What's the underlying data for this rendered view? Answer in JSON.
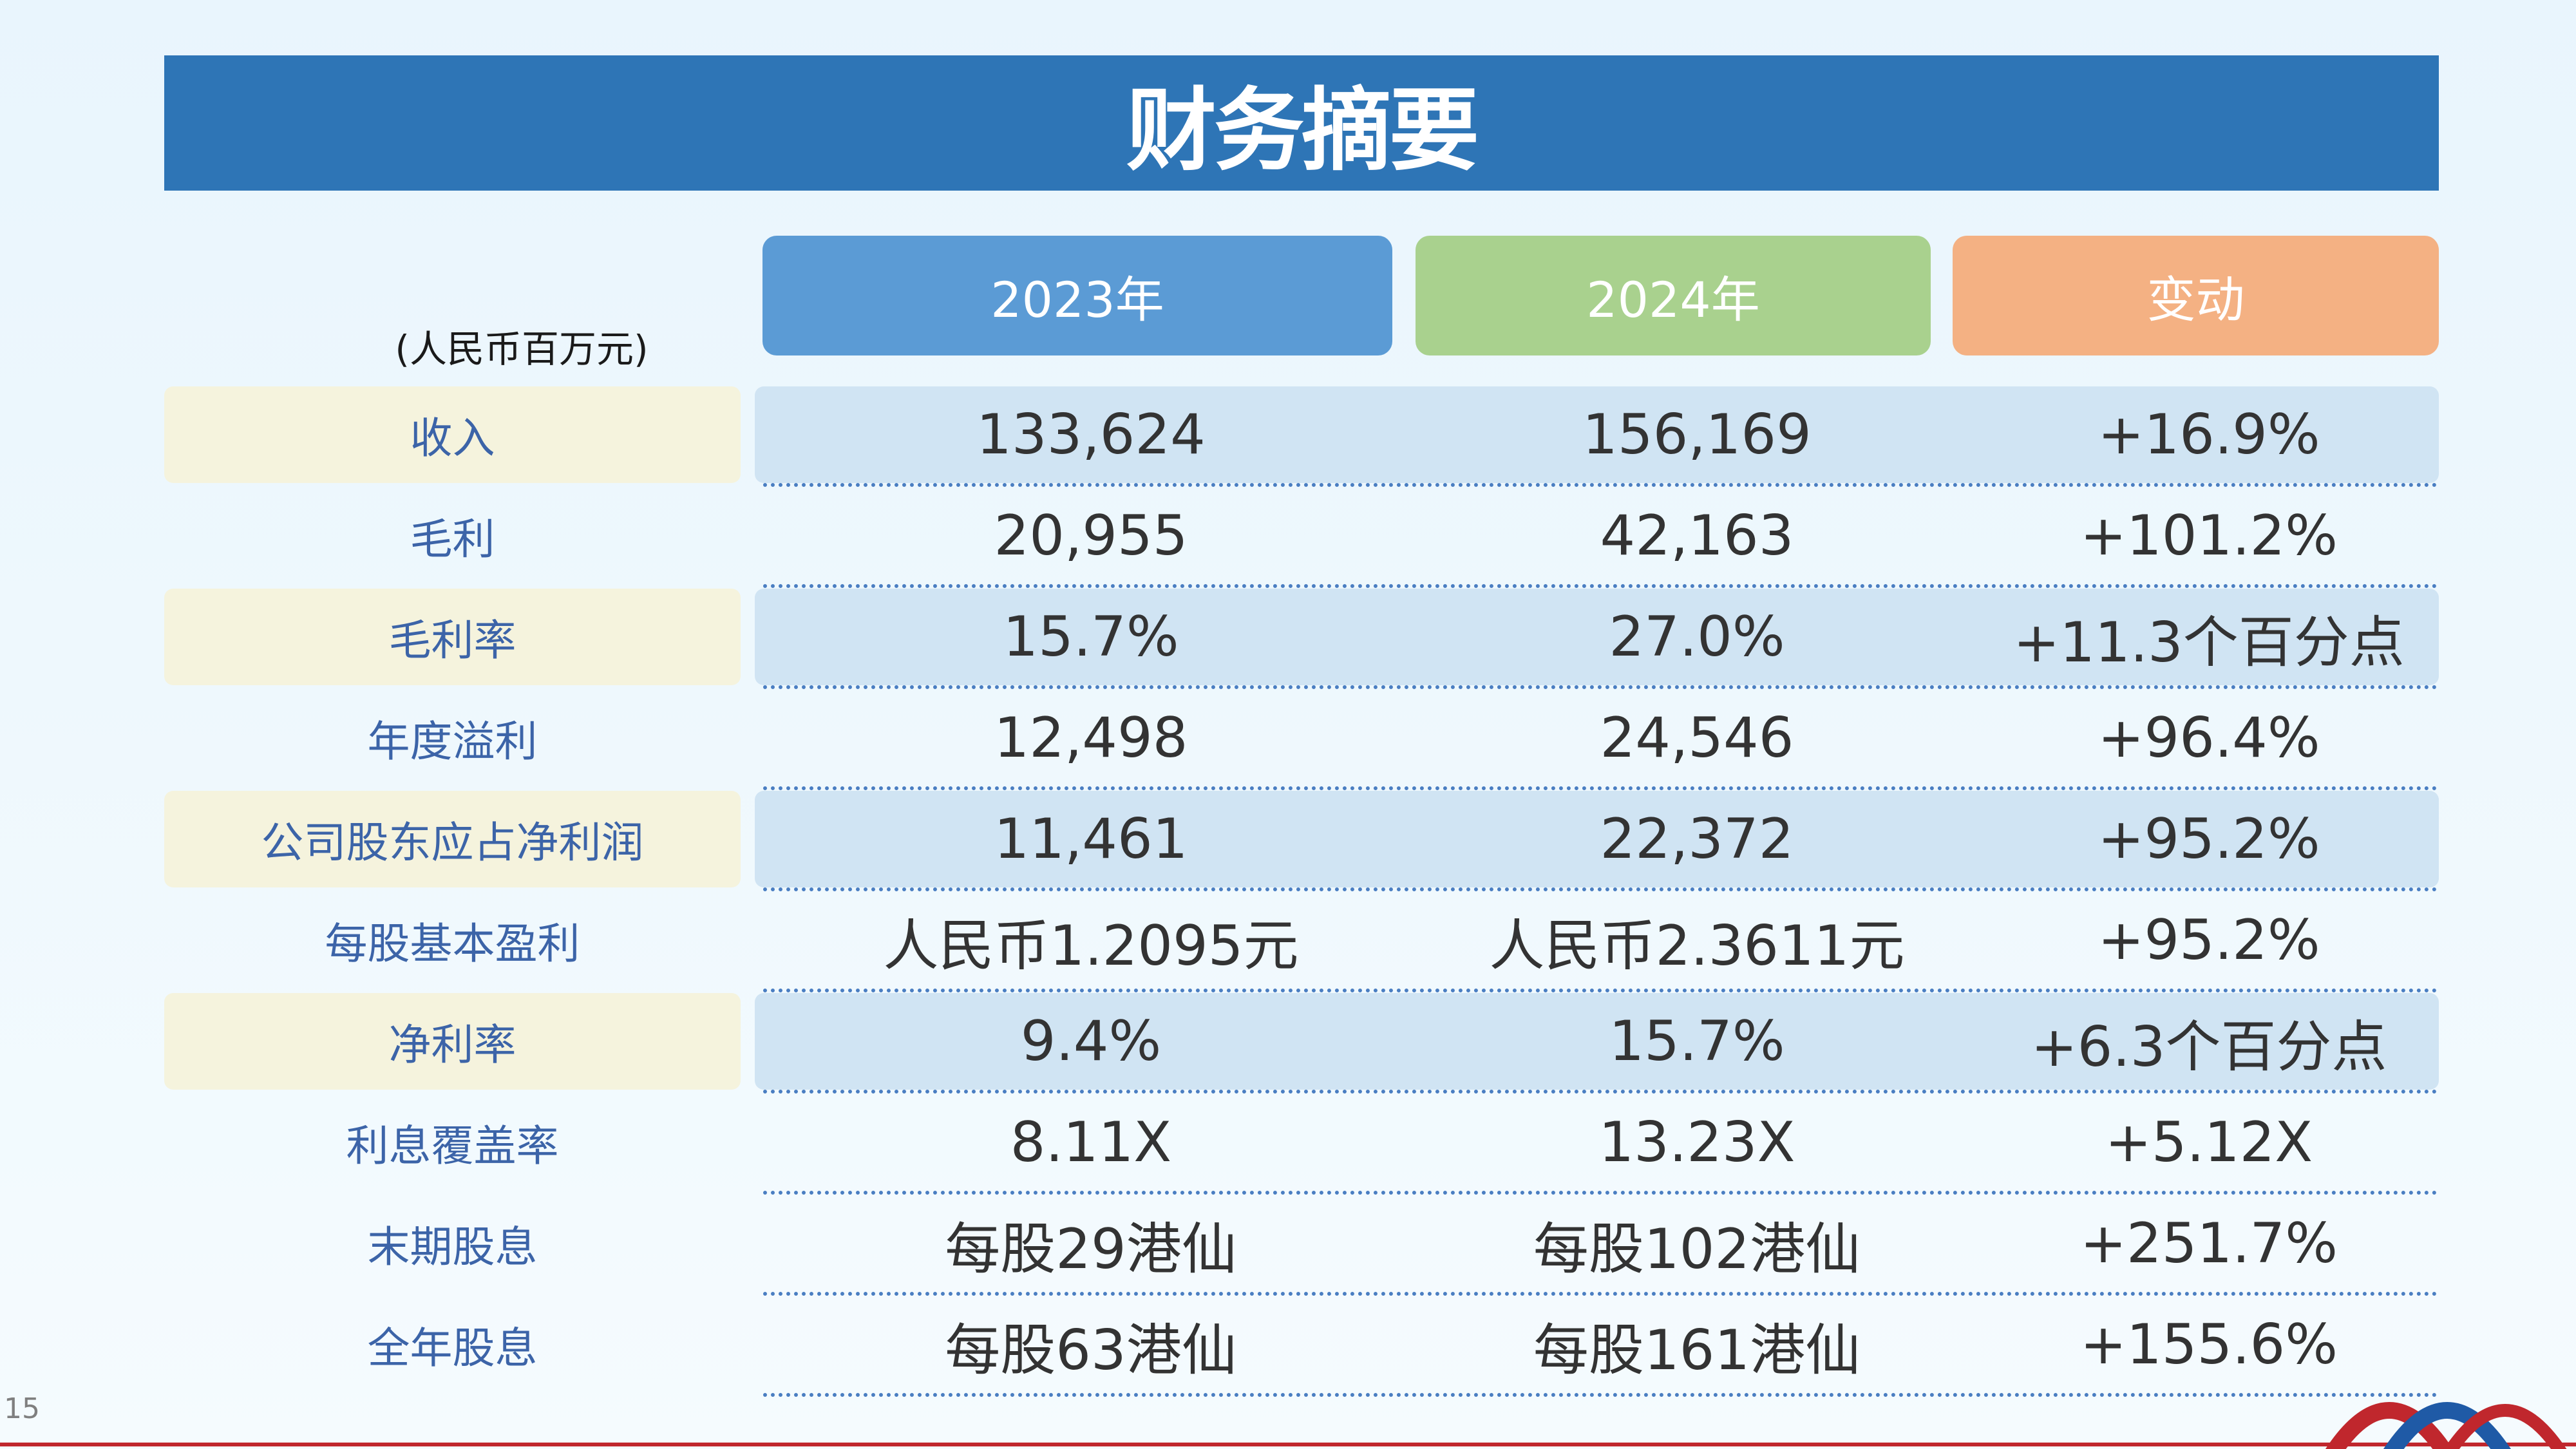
{
  "title": "财务摘要",
  "unit_label": "(人民币百万元)",
  "columns": [
    "2023年",
    "2024年",
    "变动"
  ],
  "rows": [
    {
      "label": "收入",
      "v2023": "133,624",
      "v2024": "156,169",
      "change": "+16.9%"
    },
    {
      "label": "毛利",
      "v2023": "20,955",
      "v2024": "42,163",
      "change": "+101.2%"
    },
    {
      "label": "毛利率",
      "v2023": "15.7%",
      "v2024": "27.0%",
      "change": "+11.3个百分点"
    },
    {
      "label": "年度溢利",
      "v2023": "12,498",
      "v2024": "24,546",
      "change": "+96.4%"
    },
    {
      "label": "公司股东应占净利润",
      "v2023": "11,461",
      "v2024": "22,372",
      "change": "+95.2%"
    },
    {
      "label": "每股基本盈利",
      "v2023": "人民币1.2095元",
      "v2024": "人民币2.3611元",
      "change": "+95.2%"
    },
    {
      "label": "净利率",
      "v2023": "9.4%",
      "v2024": "15.7%",
      "change": "+6.3个百分点"
    },
    {
      "label": "利息覆盖率",
      "v2023": "8.11X",
      "v2024": "13.23X",
      "change": "+5.12X"
    },
    {
      "label": "末期股息",
      "v2023": "每股29港仙",
      "v2024": "每股102港仙",
      "change": "+251.7%"
    },
    {
      "label": "全年股息",
      "v2023": "每股63港仙",
      "v2024": "每股161港仙",
      "change": "+155.6%"
    }
  ],
  "page_number": "15",
  "colors": {
    "title_bar": "#2e75b6",
    "header_2023": "#5b9bd5",
    "header_2024": "#a9d18e",
    "header_change": "#f4b183",
    "label_text": "#3c64a8",
    "highlight_label": "#f5f3dd",
    "highlight_row": "#d0e4f3"
  }
}
